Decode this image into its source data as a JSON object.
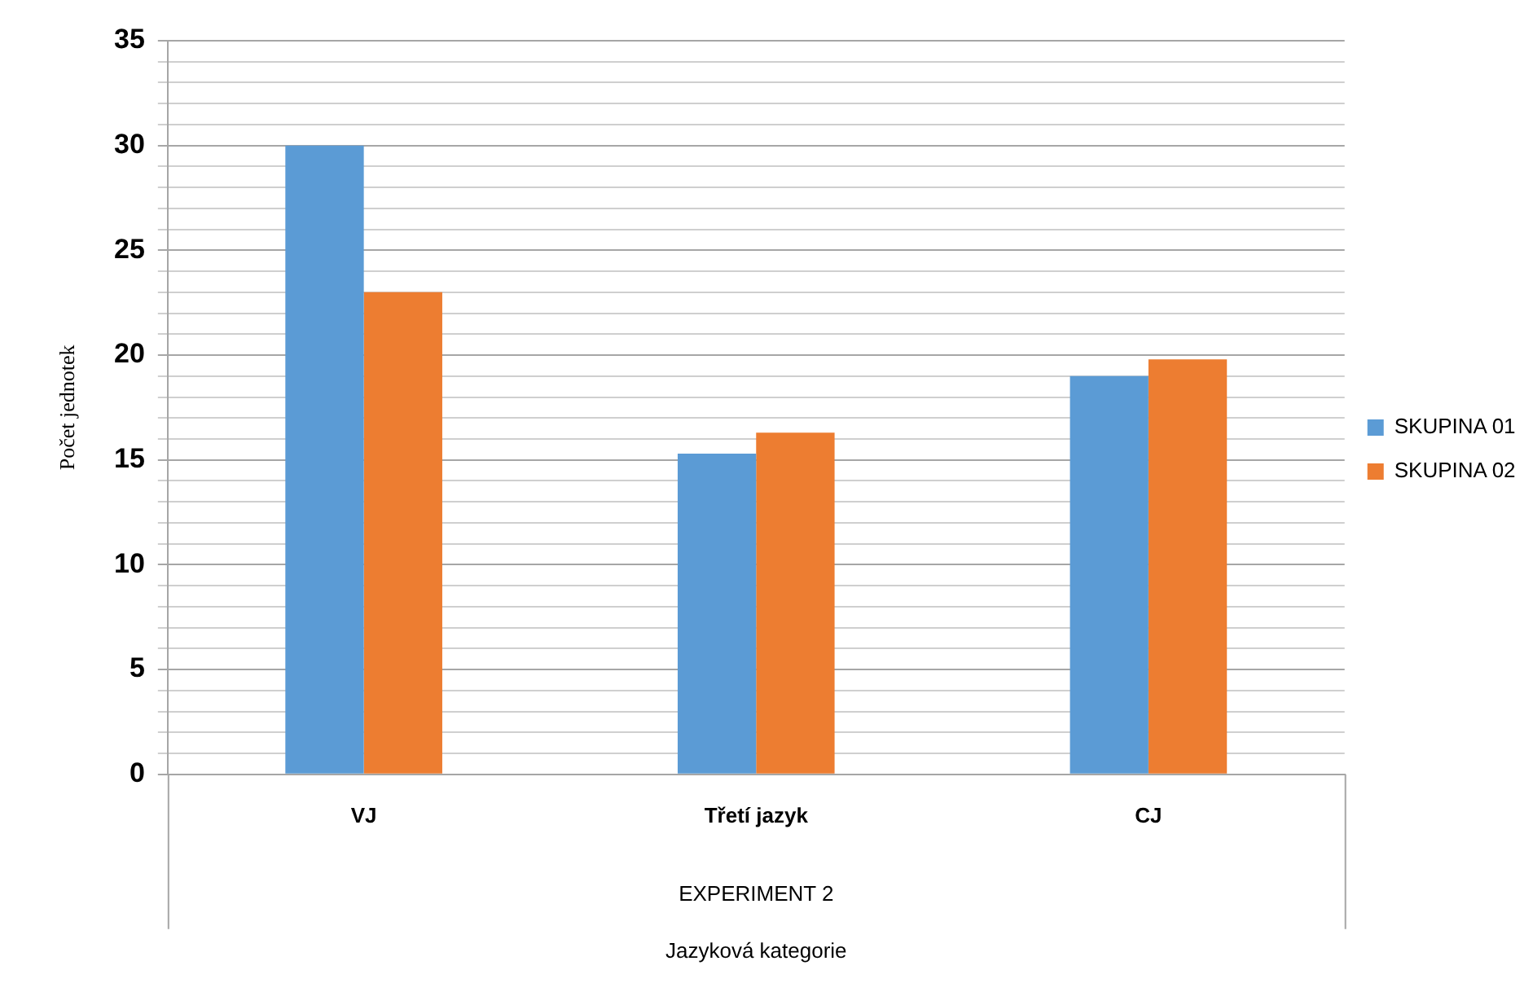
{
  "chart_data": {
    "type": "bar",
    "ylabel": "Počet jednotek",
    "annotations": [
      "EXPERIMENT 2",
      "Jazyková kategorie"
    ],
    "categories": [
      "VJ",
      "Třetí jazyk",
      "CJ"
    ],
    "series": [
      {
        "name": "SKUPINA 01",
        "color": "#5b9bd5",
        "values": [
          30,
          15.3,
          19
        ]
      },
      {
        "name": "SKUPINA 02",
        "color": "#ed7d31",
        "values": [
          23,
          16.3,
          19.8
        ]
      }
    ],
    "ylim": [
      0,
      35
    ],
    "yticks": [
      0,
      {
        "value": 1,
        "label": null
      },
      {
        "value": 2,
        "label": null
      },
      {
        "value": 3,
        "label": null
      },
      {
        "value": 4,
        "label": null
      },
      5,
      {
        "value": 6,
        "label": null
      },
      {
        "value": 7,
        "label": null
      },
      {
        "value": 8,
        "label": null
      },
      {
        "value": 9,
        "label": null
      },
      10,
      {
        "value": 11,
        "label": null
      },
      {
        "value": 12,
        "label": null
      },
      {
        "value": 13,
        "label": null
      },
      {
        "value": 14,
        "label": null
      },
      15,
      {
        "value": 16,
        "label": null
      },
      {
        "value": 17,
        "label": null
      },
      {
        "value": 18,
        "label": null
      },
      {
        "value": 19,
        "label": null
      },
      20,
      {
        "value": 21,
        "label": null
      },
      {
        "value": 22,
        "label": null
      },
      {
        "value": 23,
        "label": null
      },
      {
        "value": 24,
        "label": null
      },
      25,
      {
        "value": 26,
        "label": null
      },
      {
        "value": 27,
        "label": null
      },
      {
        "value": 28,
        "label": null
      },
      {
        "value": 29,
        "label": null
      },
      30,
      {
        "value": 31,
        "label": null
      },
      {
        "value": 32,
        "label": null
      },
      {
        "value": 33,
        "label": null
      },
      {
        "value": 34,
        "label": null
      },
      35
    ],
    "grid": "y",
    "legend": "right"
  }
}
